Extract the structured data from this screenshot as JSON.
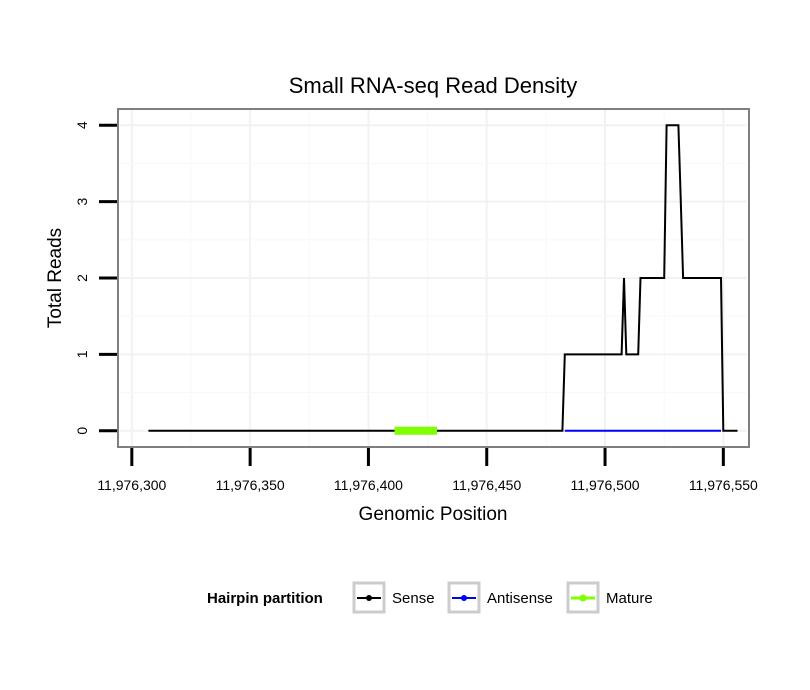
{
  "chart_data": {
    "type": "line",
    "title": "Small RNA-seq Read Density",
    "xlabel": "Genomic Position",
    "ylabel": "Total Reads",
    "xlim": [
      11976295,
      11976560
    ],
    "ylim": [
      -0.2,
      4.2
    ],
    "x_ticks": [
      11976300,
      11976350,
      11976400,
      11976450,
      11976500,
      11976550
    ],
    "x_tick_labels": [
      "11,976,300",
      "11,976,350",
      "11,976,400",
      "11,976,450",
      "11,976,500",
      "11,976,550"
    ],
    "y_ticks": [
      0,
      1,
      2,
      3,
      4
    ],
    "y_tick_labels": [
      "0",
      "1",
      "2",
      "3",
      "4"
    ],
    "grid": true,
    "legend": {
      "title": "Hairpin partition",
      "position": "bottom",
      "entries": [
        {
          "name": "Sense",
          "color": "#000000"
        },
        {
          "name": "Antisense",
          "color": "#0000ff"
        },
        {
          "name": "Mature",
          "color": "#7fff00"
        }
      ]
    },
    "series": [
      {
        "name": "Sense",
        "color": "#000000",
        "points": [
          [
            11976307,
            0
          ],
          [
            11976482,
            0
          ],
          [
            11976483,
            1
          ],
          [
            11976507,
            1
          ],
          [
            11976508,
            2
          ],
          [
            11976509,
            1
          ],
          [
            11976514,
            1
          ],
          [
            11976515,
            2
          ],
          [
            11976525,
            2
          ],
          [
            11976526,
            4
          ],
          [
            11976531,
            4
          ],
          [
            11976532,
            3
          ],
          [
            11976533,
            2
          ],
          [
            11976549,
            2
          ],
          [
            11976550,
            0
          ],
          [
            11976556,
            0
          ]
        ]
      },
      {
        "name": "Antisense",
        "color": "#0000ff",
        "points": [
          [
            11976483,
            0
          ],
          [
            11976549,
            0
          ]
        ]
      },
      {
        "name": "Mature",
        "color": "#7fff00",
        "points": [
          [
            11976411,
            0
          ],
          [
            11976429,
            0
          ]
        ]
      }
    ]
  }
}
